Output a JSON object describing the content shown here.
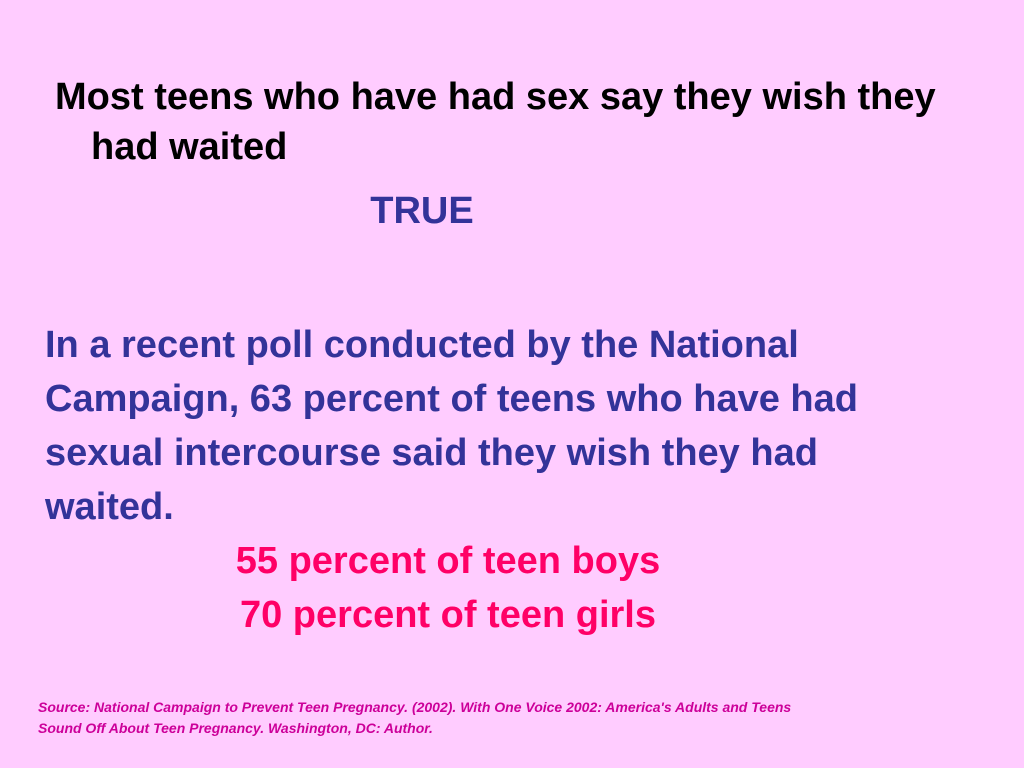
{
  "slide": {
    "statement": "Most teens who have had sex say they wish they had waited",
    "answer": "TRUE",
    "explanation": "In a recent poll conducted by the National Campaign, 63 percent of teens who have had sexual intercourse said they wish they had waited.",
    "breakdown": [
      "55 percent of teen boys",
      "70 percent of teen girls"
    ],
    "source": "Source: National Campaign to Prevent Teen Pregnancy. (2002). With One Voice 2002: America's Adults and Teens Sound Off About Teen Pregnancy. Washington, DC: Author."
  }
}
